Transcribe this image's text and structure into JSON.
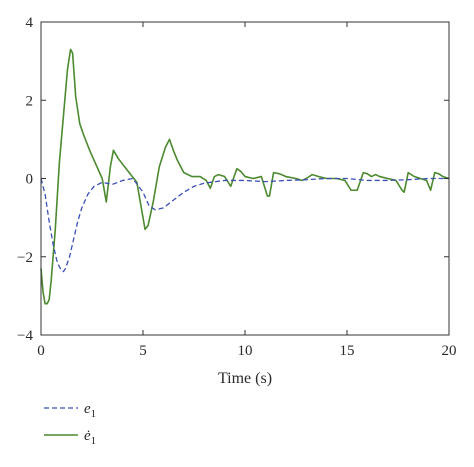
{
  "chart_data": {
    "type": "line",
    "title": "",
    "xlabel": "Time (s)",
    "ylabel": "",
    "xlim": [
      0,
      20
    ],
    "ylim": [
      -4,
      4
    ],
    "xticks": [
      0,
      5,
      10,
      15,
      20
    ],
    "yticks": [
      -4,
      -2,
      0,
      2,
      4
    ],
    "xtick_labels": [
      "0",
      "5",
      "10",
      "15",
      "20"
    ],
    "ytick_labels": [
      "−4",
      "−2",
      "0",
      "2",
      "4"
    ],
    "grid": false,
    "legend_position": "bottom-left (below plot)",
    "series": [
      {
        "name": "e1",
        "legend_base": "e",
        "legend_sub": "1",
        "color": "#3b4fb8",
        "style": "dashed",
        "x": [
          0,
          0.2,
          0.4,
          0.6,
          0.8,
          1.0,
          1.1,
          1.2,
          1.4,
          1.6,
          1.8,
          2.0,
          2.3,
          2.6,
          3.0,
          3.5,
          4.0,
          4.5,
          5.0,
          5.3,
          5.6,
          6.0,
          6.5,
          7.0,
          7.5,
          8.0,
          9.0,
          10.0,
          11.0,
          12.0,
          13.0,
          14.0,
          15.0,
          16.0,
          17.0,
          18.0,
          19.0,
          20.0
        ],
        "y": [
          0,
          -0.4,
          -1.1,
          -1.7,
          -2.15,
          -2.35,
          -2.38,
          -2.3,
          -2.0,
          -1.55,
          -1.1,
          -0.75,
          -0.4,
          -0.2,
          -0.1,
          -0.15,
          -0.05,
          0.0,
          -0.35,
          -0.7,
          -0.8,
          -0.75,
          -0.55,
          -0.35,
          -0.2,
          -0.12,
          -0.05,
          -0.05,
          -0.08,
          -0.05,
          -0.03,
          0.0,
          0.0,
          -0.05,
          -0.05,
          -0.03,
          0.0,
          0.0
        ]
      },
      {
        "name": "ė1",
        "legend_base": "ė",
        "legend_sub": "1",
        "color": "#4b8a2e",
        "style": "solid",
        "x": [
          0,
          0.1,
          0.2,
          0.3,
          0.4,
          0.5,
          0.7,
          0.9,
          1.1,
          1.3,
          1.45,
          1.55,
          1.7,
          1.9,
          2.1,
          2.4,
          2.7,
          3.0,
          3.2,
          3.4,
          3.55,
          3.8,
          4.1,
          4.4,
          4.7,
          4.9,
          5.1,
          5.25,
          5.5,
          5.8,
          6.1,
          6.3,
          6.5,
          6.7,
          7.0,
          7.4,
          7.8,
          8.1,
          8.3,
          8.5,
          8.7,
          9.0,
          9.3,
          9.6,
          9.8,
          10.0,
          10.4,
          10.8,
          11.1,
          11.2,
          11.4,
          11.7,
          12.0,
          12.5,
          12.8,
          13.0,
          13.3,
          13.6,
          14.0,
          14.5,
          14.9,
          15.2,
          15.5,
          15.8,
          16.0,
          16.2,
          16.4,
          16.6,
          17.0,
          17.4,
          17.7,
          17.8,
          18.0,
          18.3,
          18.6,
          18.9,
          19.1,
          19.3,
          19.5,
          19.7,
          20.0
        ],
        "y": [
          -2.3,
          -2.9,
          -3.2,
          -3.2,
          -3.1,
          -2.6,
          -1.3,
          0.4,
          1.6,
          2.8,
          3.3,
          3.2,
          2.1,
          1.4,
          1.1,
          0.7,
          0.35,
          0.0,
          -0.6,
          0.3,
          0.72,
          0.5,
          0.3,
          0.1,
          -0.1,
          -0.7,
          -1.3,
          -1.2,
          -0.6,
          0.3,
          0.8,
          1.0,
          0.7,
          0.45,
          0.15,
          0.05,
          0.05,
          -0.05,
          -0.25,
          0.05,
          0.1,
          0.05,
          -0.2,
          0.25,
          0.18,
          0.05,
          0.0,
          0.05,
          -0.45,
          -0.45,
          0.15,
          0.12,
          0.05,
          0.0,
          -0.05,
          0.0,
          0.1,
          0.05,
          0.0,
          0.0,
          -0.05,
          -0.3,
          -0.3,
          0.15,
          0.12,
          0.05,
          0.1,
          0.05,
          0.0,
          -0.05,
          -0.3,
          -0.35,
          0.15,
          0.05,
          0.0,
          -0.05,
          -0.3,
          0.15,
          0.12,
          0.05,
          0.0
        ]
      }
    ]
  }
}
